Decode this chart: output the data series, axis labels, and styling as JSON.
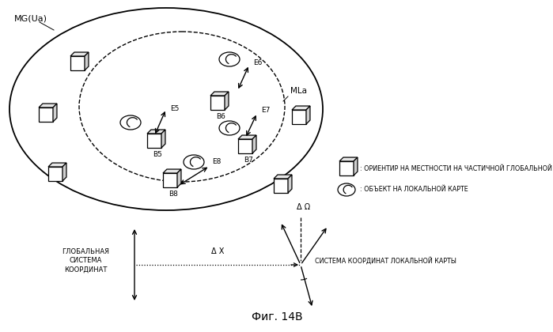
{
  "title": "Фиг. 14B",
  "bg_color": "#ffffff",
  "label_MG": "MG(Ua)",
  "label_MLa": "MLa",
  "legend_box_label": ": ОРИЕНТИР НА МЕСТНОСТИ НА ЧАСТИЧНОЙ ГЛОБАЛЬНОЙ КАРТЕ",
  "legend_oval_label": ": ОБЪЕКТ НА ЛОКАЛЬНОЙ КАРТЕ",
  "global_coord_label": "ГЛОБАЛЬНАЯ\nСИСТЕМА\nКООРДИНАТ",
  "local_coord_label": "СИСТЕМА КООРДИНАТ ЛОКАЛЬНОЙ КАРТЫ",
  "delta_x_label": "Δ X",
  "delta_omega_label": "Δ Ω"
}
